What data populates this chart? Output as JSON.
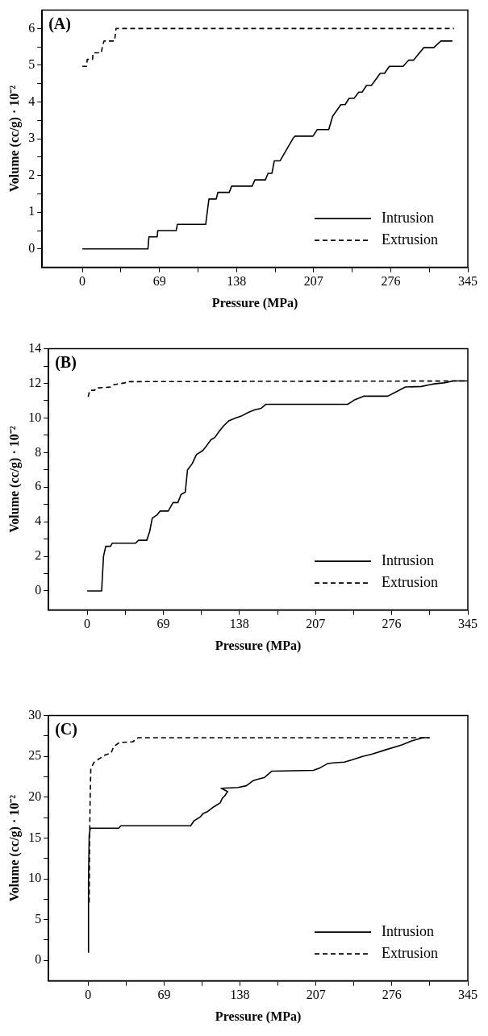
{
  "chart_data": [
    {
      "type": "line",
      "title": "(A)",
      "xlabel": "Pressure (MPa)",
      "ylabel": "Volume (cc/g) · 10⁻²",
      "legend": "bottom right",
      "grid": false,
      "marker": "none",
      "xlim": [
        -36,
        345
      ],
      "xticks": [
        0,
        {
          "value": 34.5,
          "label": null
        },
        69,
        {
          "value": 103.5,
          "label": null
        },
        138,
        {
          "value": 172.5,
          "label": null
        },
        207,
        {
          "value": 241.5,
          "label": null
        },
        276,
        {
          "value": 310.5,
          "label": null
        },
        345
      ],
      "ylim": [
        -0.5,
        6.5
      ],
      "yticks": [
        0,
        {
          "value": 0.5,
          "label": null
        },
        1,
        {
          "value": 1.5,
          "label": null
        },
        2,
        {
          "value": 2.5,
          "label": null
        },
        3,
        {
          "value": 3.5,
          "label": null
        },
        4,
        {
          "value": 4.5,
          "label": null
        },
        5,
        {
          "value": 5.5,
          "label": null
        },
        6
      ],
      "series": [
        {
          "name": "Intrusion",
          "color": "#000000",
          "line_style": "solid",
          "x": [
            0,
            58.7,
            59.6,
            67,
            67.5,
            84,
            85,
            110.4,
            113.3,
            119.8,
            121.3,
            131.5,
            133.6,
            152,
            154.4,
            163.8,
            166.2,
            169.7,
            171.8,
            177,
            188.8,
            190.3,
            206.4,
            210.2,
            220.5,
            224,
            231.4,
            235.2,
            238.7,
            243.1,
            247.5,
            250.4,
            254.3,
            258.7,
            266.6,
            270.4,
            274.8,
            287.1,
            292.1,
            296.5,
            305.6,
            314.4,
            320.9,
            331.2
          ],
          "values": [
            0,
            0,
            0.33,
            0.33,
            0.5,
            0.5,
            0.67,
            0.67,
            1.36,
            1.36,
            1.54,
            1.54,
            1.71,
            1.71,
            1.88,
            1.88,
            2.06,
            2.06,
            2.4,
            2.4,
            3.02,
            3.07,
            3.07,
            3.25,
            3.25,
            3.61,
            3.93,
            3.93,
            4.1,
            4.1,
            4.27,
            4.27,
            4.45,
            4.45,
            4.78,
            4.78,
            4.97,
            4.97,
            5.14,
            5.14,
            5.48,
            5.48,
            5.66,
            5.66
          ]
        },
        {
          "name": "Extrusion",
          "color": "#000000",
          "line_style": "dashed",
          "x": [
            0,
            3.8,
            4.4,
            9.1,
            9.7,
            17,
            17.9,
            19.4,
            28.8,
            30.2,
            332.6
          ],
          "values": [
            4.97,
            4.97,
            5.16,
            5.16,
            5.34,
            5.34,
            5.5,
            5.66,
            5.66,
            6.0,
            6.0
          ]
        }
      ]
    },
    {
      "type": "line",
      "title": "(B)",
      "xlabel": "Pressure (MPa)",
      "ylabel": "Volume (cc/g) · 10⁻²",
      "legend": "bottom right",
      "grid": false,
      "marker": "none",
      "xlim": [
        -35,
        345
      ],
      "xticks": [
        0,
        {
          "value": 34.5,
          "label": null
        },
        69,
        {
          "value": 103.5,
          "label": null
        },
        138,
        {
          "value": 172.5,
          "label": null
        },
        207,
        {
          "value": 241.5,
          "label": null
        },
        276,
        {
          "value": 310.5,
          "label": null
        },
        345
      ],
      "ylim": [
        -1.1,
        14
      ],
      "yticks": [
        0,
        {
          "value": 1,
          "label": null
        },
        2,
        {
          "value": 3,
          "label": null
        },
        4,
        {
          "value": 5,
          "label": null
        },
        6,
        {
          "value": 7,
          "label": null
        },
        8,
        {
          "value": 9,
          "label": null
        },
        10,
        {
          "value": 11,
          "label": null
        },
        12,
        {
          "value": 13,
          "label": null
        },
        14
      ],
      "series": [
        {
          "name": "Intrusion",
          "color": "#000000",
          "line_style": "solid",
          "x": [
            0,
            13.1,
            14.8,
            16.8,
            21.2,
            22.7,
            43.9,
            46.5,
            54,
            56.6,
            59,
            63.4,
            66.2,
            73.5,
            77.8,
            82.2,
            85.1,
            88.9,
            90.9,
            95.3,
            99,
            104.9,
            108.3,
            112.1,
            115.6,
            119.9,
            124.3,
            128.7,
            134.5,
            140.3,
            146.1,
            151.9,
            157.7,
            162.1,
            236.1,
            241.9,
            250.6,
            272.4,
            279.7,
            288.4,
            302.9,
            310.2,
            314.6,
            323.3,
            332,
            345
          ],
          "values": [
            0,
            0,
            2.0,
            2.58,
            2.58,
            2.76,
            2.76,
            2.93,
            2.93,
            3.42,
            4.21,
            4.4,
            4.62,
            4.62,
            5.11,
            5.11,
            5.58,
            5.71,
            6.99,
            7.37,
            7.88,
            8.12,
            8.4,
            8.74,
            8.87,
            9.25,
            9.59,
            9.85,
            10.0,
            10.13,
            10.32,
            10.47,
            10.56,
            10.79,
            10.79,
            11.03,
            11.26,
            11.26,
            11.5,
            11.79,
            11.82,
            11.92,
            11.97,
            12.03,
            12.14,
            12.14
          ]
        },
        {
          "name": "Extrusion",
          "color": "#000000",
          "line_style": "dashed",
          "x": [
            0.9,
            2.3,
            6.7,
            8.1,
            21.2,
            24,
            34.3,
            35.7,
            345
          ],
          "values": [
            11.22,
            11.6,
            11.6,
            11.73,
            11.79,
            11.92,
            12.03,
            12.1,
            12.14
          ]
        }
      ]
    },
    {
      "type": "line",
      "title": "(C)",
      "xlabel": "Pressure (MPa)",
      "ylabel": "Volume (cc/g) · 10⁻²",
      "legend": "bottom right",
      "grid": false,
      "marker": "none",
      "xlim": [
        -36,
        345
      ],
      "xticks": [
        0,
        {
          "value": 34.5,
          "label": null
        },
        69,
        {
          "value": 103.5,
          "label": null
        },
        138,
        {
          "value": 172.5,
          "label": null
        },
        207,
        {
          "value": 241.5,
          "label": null
        },
        276,
        {
          "value": 310.5,
          "label": null
        },
        345
      ],
      "ylim": [
        -2.5,
        30
      ],
      "yticks": [
        0,
        {
          "value": 2.5,
          "label": null
        },
        5,
        {
          "value": 7.5,
          "label": null
        },
        10,
        {
          "value": 12.5,
          "label": null
        },
        15,
        {
          "value": 17.5,
          "label": null
        },
        20,
        {
          "value": 22.5,
          "label": null
        },
        25,
        {
          "value": 27.5,
          "label": null
        },
        30
      ],
      "series": [
        {
          "name": "Intrusion",
          "color": "#000000",
          "line_style": "solid",
          "x": [
            0,
            0.3,
            0.9,
            1.8,
            2.4,
            27.7,
            29.7,
            93.1,
            96.1,
            102,
            104.4,
            108,
            113.9,
            119.9,
            122,
            124.3,
            126.7,
            120.8,
            136.2,
            143.7,
            149.6,
            154.1,
            160,
            166.9,
            204.6,
            210.6,
            217.3,
            222.5,
            232.9,
            240.3,
            249.3,
            258.2,
            270.1,
            284.9,
            293.9,
            304.3,
            310.2
          ],
          "values": [
            1.0,
            9.6,
            15.3,
            16.1,
            16.2,
            16.2,
            16.5,
            16.5,
            17.1,
            17.6,
            18.0,
            18.2,
            18.8,
            19.3,
            19.9,
            20.2,
            20.7,
            21.1,
            21.2,
            21.4,
            22.0,
            22.2,
            22.4,
            23.2,
            23.3,
            23.6,
            24.1,
            24.2,
            24.3,
            24.6,
            25.0,
            25.3,
            25.8,
            26.4,
            26.9,
            27.3,
            27.3
          ]
        },
        {
          "name": "Extrusion",
          "color": "#000000",
          "line_style": "dashed",
          "x": [
            0.9,
            1.5,
            1.8,
            2.4,
            5.4,
            9.8,
            15.8,
            20.8,
            23.2,
            28.3,
            40.5,
            45.5,
            310.2
          ],
          "values": [
            7.1,
            16.9,
            19.8,
            23.5,
            24.3,
            24.7,
            25.2,
            25.4,
            26.2,
            26.7,
            26.8,
            27.3,
            27.3
          ]
        }
      ]
    }
  ]
}
